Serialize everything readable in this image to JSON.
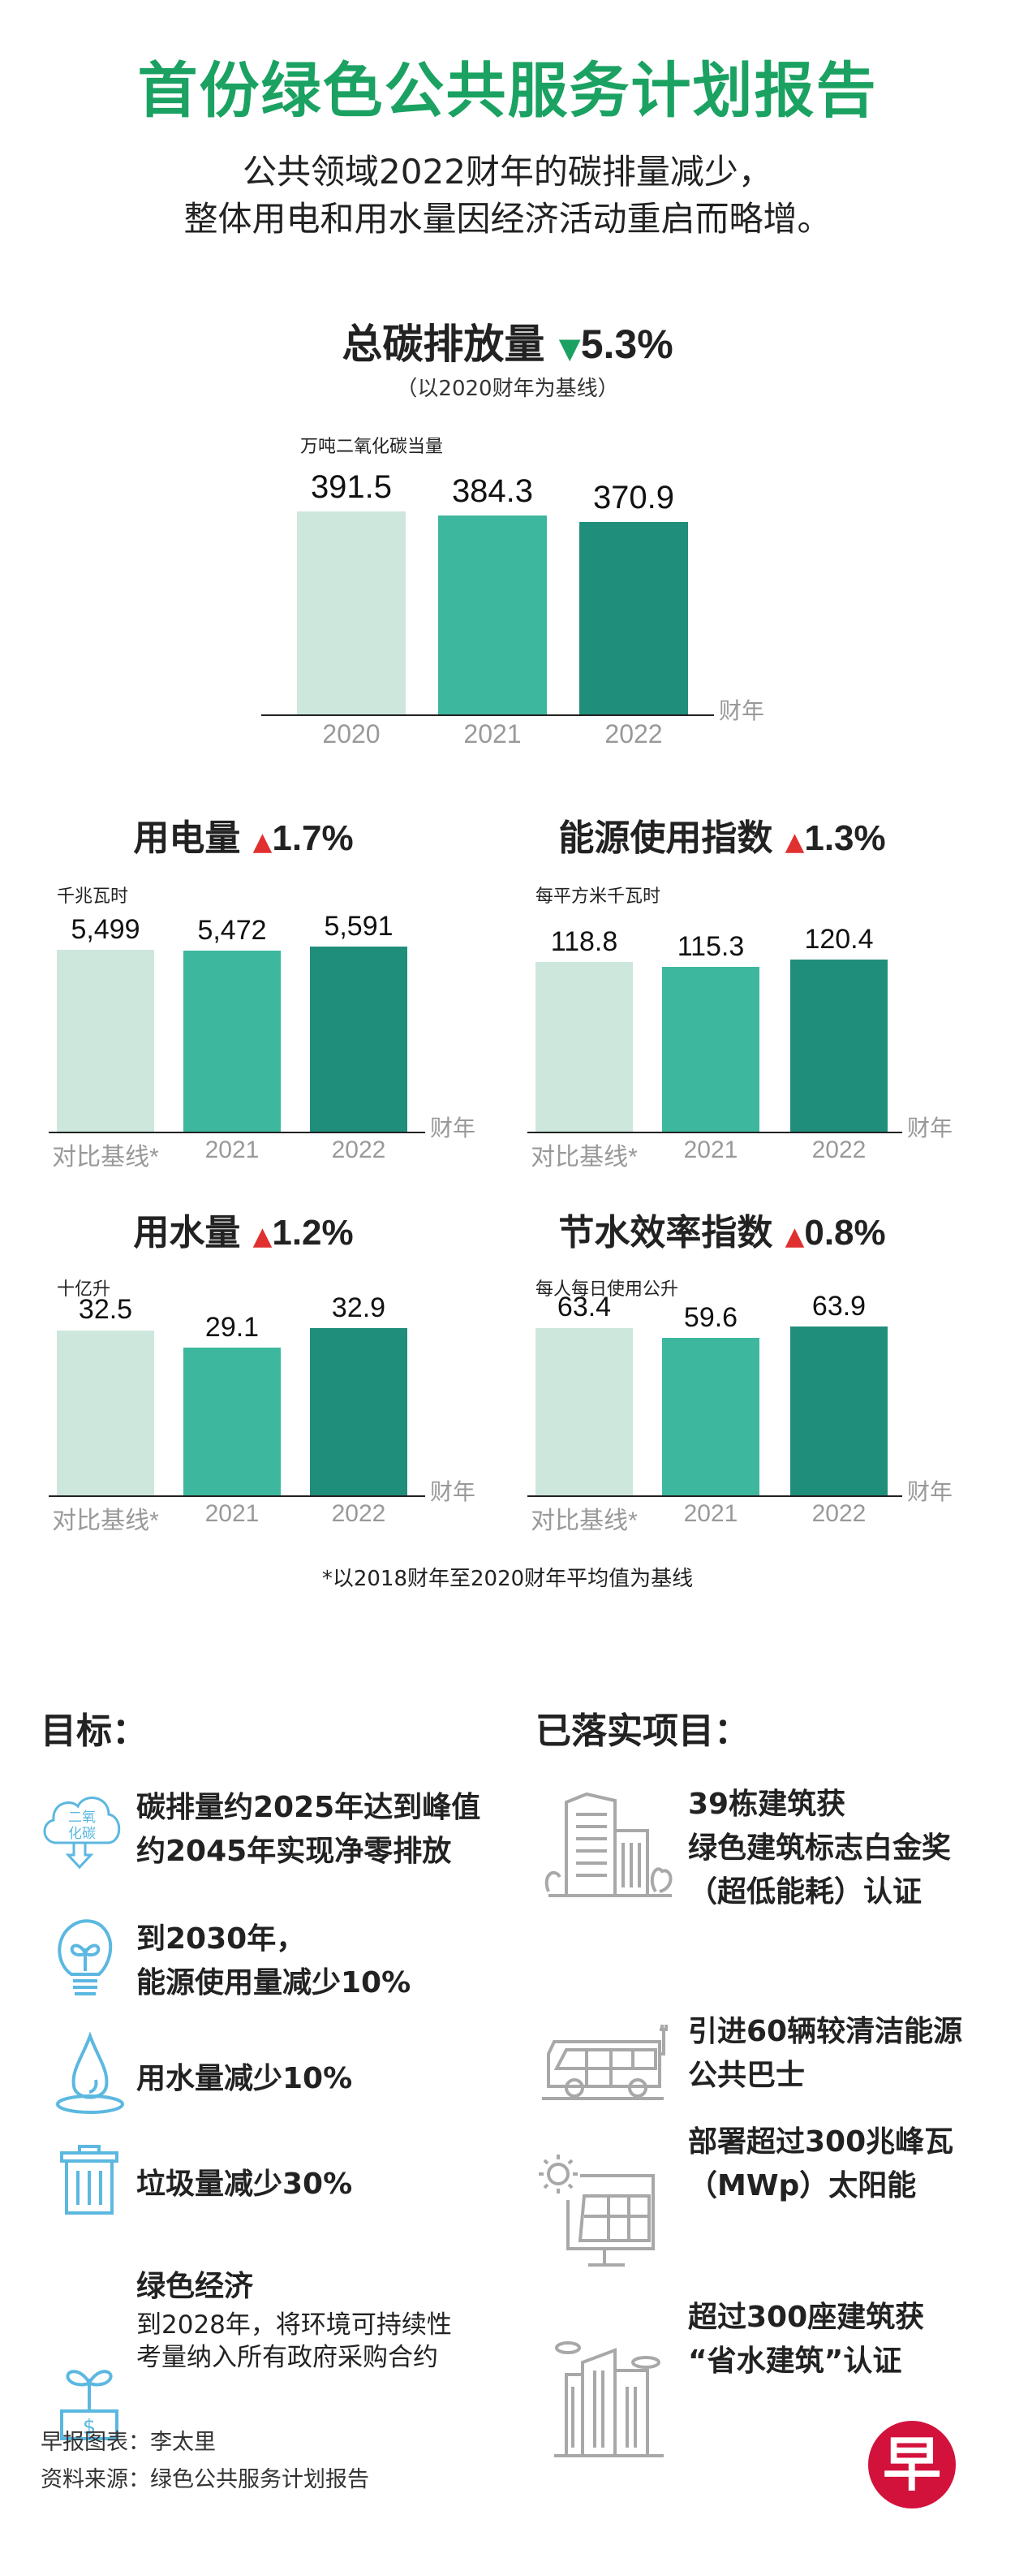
{
  "title": "首份绿色公共服务计划报告",
  "subtitle": [
    "公共领域2022财年的碳排量减少，",
    "整体用电和用水量因经济活动重启而略增。"
  ],
  "colors": {
    "title": "#1ba262",
    "bar_baseline": "#cde7dc",
    "bar_2021": "#3db89e",
    "bar_2022": "#1f8e7b",
    "up": "#e03030",
    "down": "#1ba262",
    "goal_icon": "#5bb8e0",
    "project_icon": "#a8a8a8",
    "logo": "#d3123c"
  },
  "chart_data": [
    {
      "type": "bar",
      "title": "总碳排放量",
      "change": "5.3%",
      "direction": "down",
      "note": "（以2020财年为基线）",
      "unit": "万吨二氧化碳当量",
      "categories": [
        "2020",
        "2021",
        "2022"
      ],
      "values": [
        391.5,
        384.3,
        370.9
      ],
      "labels": [
        "391.5",
        "384.3",
        "370.9"
      ],
      "xlabel": "财年"
    },
    {
      "type": "bar",
      "title": "用电量",
      "change": "1.7%",
      "direction": "up",
      "unit": "千兆瓦时",
      "categories": [
        "对比基线*",
        "2021",
        "2022"
      ],
      "values": [
        5499,
        5472,
        5591
      ],
      "labels": [
        "5,499",
        "5,472",
        "5,591"
      ],
      "xlabel": "财年"
    },
    {
      "type": "bar",
      "title": "能源使用指数",
      "change": "1.3%",
      "direction": "up",
      "unit": "每平方米千瓦时",
      "categories": [
        "对比基线*",
        "2021",
        "2022"
      ],
      "values": [
        118.8,
        115.3,
        120.4
      ],
      "labels": [
        "118.8",
        "115.3",
        "120.4"
      ],
      "xlabel": "财年"
    },
    {
      "type": "bar",
      "title": "用水量",
      "change": "1.2%",
      "direction": "up",
      "unit": "十亿升",
      "categories": [
        "对比基线*",
        "2021",
        "2022"
      ],
      "values": [
        32.5,
        29.1,
        32.9
      ],
      "labels": [
        "32.5",
        "29.1",
        "32.9"
      ],
      "xlabel": "财年"
    },
    {
      "type": "bar",
      "title": "节水效率指数",
      "change": "0.8%",
      "direction": "up",
      "unit": "每人每日使用公升",
      "categories": [
        "对比基线*",
        "2021",
        "2022"
      ],
      "values": [
        63.4,
        59.6,
        63.9
      ],
      "labels": [
        "63.4",
        "59.6",
        "63.9"
      ],
      "xlabel": "财年"
    }
  ],
  "footnote": "*以2018财年至2020财年平均值为基线",
  "goals": {
    "heading": "目标：",
    "items": [
      {
        "icon": "co2-cloud-icon",
        "icon_text": [
          "二氧",
          "化碳"
        ],
        "lines": [
          "碳排量约2025年达到峰值",
          "约2045年实现净零排放"
        ]
      },
      {
        "icon": "lightbulb-plant-icon",
        "lines": [
          "到2030年，",
          "能源使用量减少10%"
        ]
      },
      {
        "icon": "water-drop-icon",
        "lines": [
          "用水量减少10%"
        ]
      },
      {
        "icon": "trash-bin-icon",
        "lines": [
          "垃圾量减少30%"
        ]
      },
      {
        "icon": "money-plant-icon",
        "lines": [
          "绿色经济"
        ],
        "sub": [
          "到2028年，将环境可持续性",
          "考量纳入所有政府采购合约"
        ]
      }
    ]
  },
  "projects": {
    "heading": "已落实项目：",
    "items": [
      {
        "icon": "building-icon",
        "lines": [
          "39栋建筑获",
          "绿色建筑标志白金奖",
          "（超低能耗）认证"
        ]
      },
      {
        "icon": "electric-bus-icon",
        "lines": [
          "引进60辆较清洁能源",
          "公共巴士"
        ]
      },
      {
        "icon": "solar-panel-icon",
        "lines": [
          "部署超过300兆峰瓦",
          "（MWp）太阳能"
        ]
      },
      {
        "icon": "buildings-icon",
        "lines": [
          "超过300座建筑获",
          "“省水建筑”认证"
        ]
      }
    ]
  },
  "footer": {
    "credit": "早报图表：李太里",
    "source": "资料来源：绿色公共服务计划报告",
    "logo_text": "早"
  }
}
